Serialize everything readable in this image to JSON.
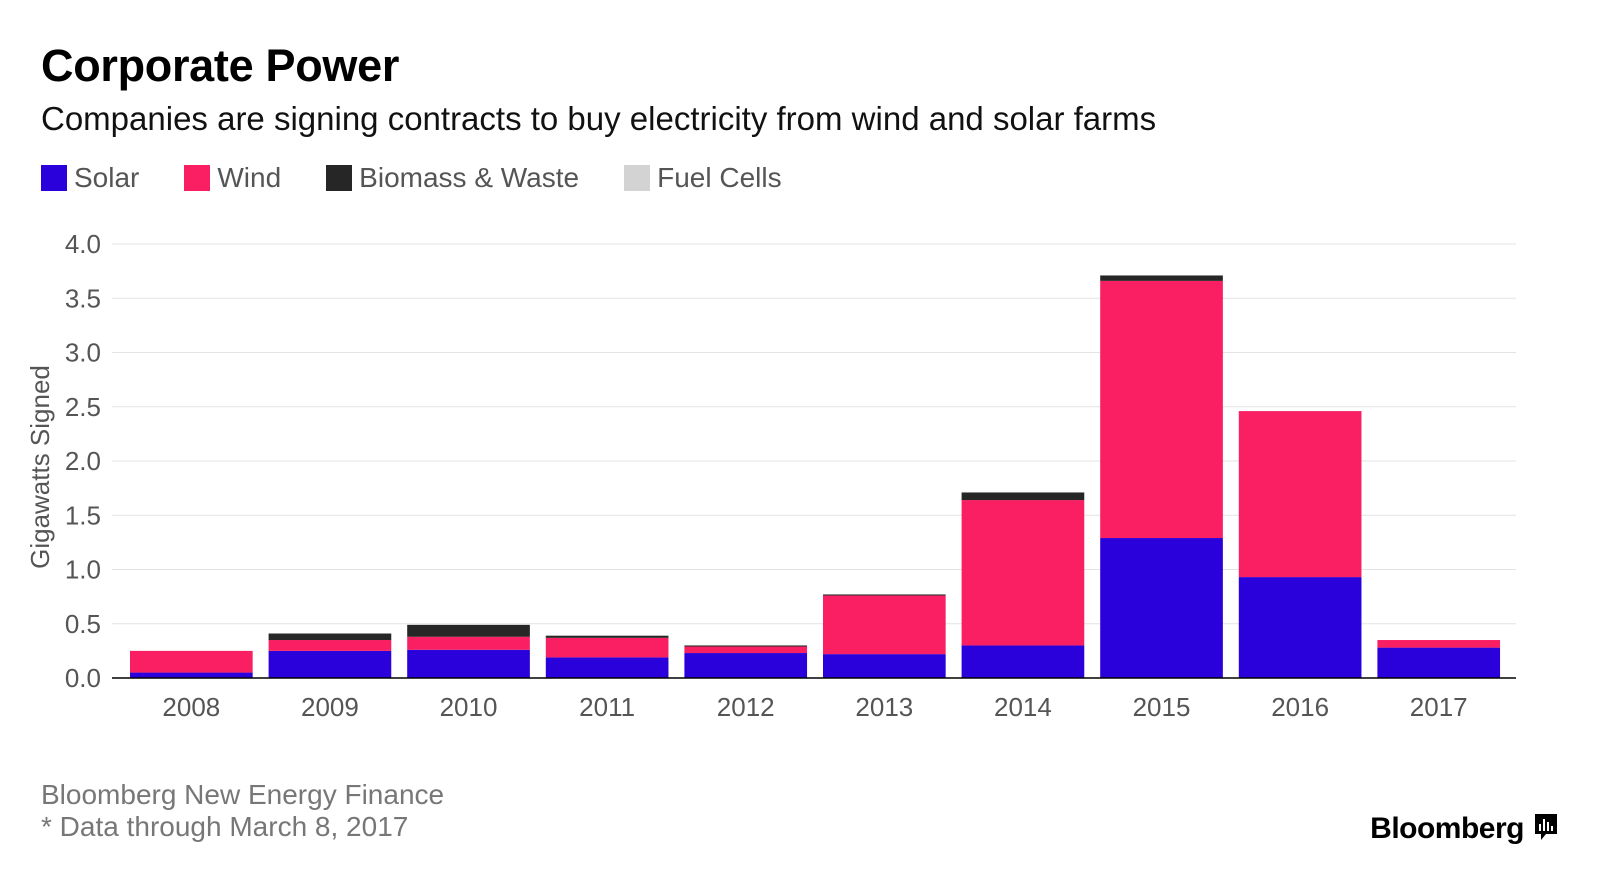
{
  "header": {
    "title": "Corporate Power",
    "subtitle": "Companies are signing contracts to buy electricity from wind and solar farms"
  },
  "legend": [
    {
      "label": "Solar",
      "color": "#2a00db"
    },
    {
      "label": "Wind",
      "color": "#f91f62"
    },
    {
      "label": "Biomass & Waste",
      "color": "#262626"
    },
    {
      "label": "Fuel Cells",
      "color": "#d3d3d3"
    }
  ],
  "footer": {
    "source": "Bloomberg New Energy Finance",
    "note": "* Data through March 8, 2017",
    "logo": "Bloomberg",
    "logo_icon": "bloomberg-chart-icon"
  },
  "chart_data": {
    "type": "bar",
    "stacked": true,
    "ylabel": "Gigawatts Signed",
    "xlabel": "",
    "ylim": [
      0,
      4.0
    ],
    "yticks": [
      "0.0",
      "0.5",
      "1.0",
      "1.5",
      "2.0",
      "2.5",
      "3.0",
      "3.5",
      "4.0"
    ],
    "grid": true,
    "legend_position": "top-left",
    "categories": [
      "2008",
      "2009",
      "2010",
      "2011",
      "2012",
      "2013",
      "2014",
      "2015",
      "2016",
      "2017"
    ],
    "series": [
      {
        "name": "Solar",
        "color": "#2a00db",
        "values": [
          0.05,
          0.25,
          0.26,
          0.19,
          0.23,
          0.22,
          0.3,
          1.29,
          0.93,
          0.28
        ]
      },
      {
        "name": "Wind",
        "color": "#f91f62",
        "values": [
          0.2,
          0.1,
          0.12,
          0.18,
          0.06,
          0.54,
          1.34,
          2.37,
          1.53,
          0.07
        ]
      },
      {
        "name": "Biomass & Waste",
        "color": "#262626",
        "values": [
          0.0,
          0.06,
          0.11,
          0.02,
          0.01,
          0.01,
          0.07,
          0.05,
          0.0,
          0.0
        ]
      },
      {
        "name": "Fuel Cells",
        "color": "#d3d3d3",
        "values": [
          0.0,
          0.0,
          0.0,
          0.0,
          0.0,
          0.0,
          0.0,
          0.0,
          0.0,
          0.0
        ]
      }
    ]
  }
}
